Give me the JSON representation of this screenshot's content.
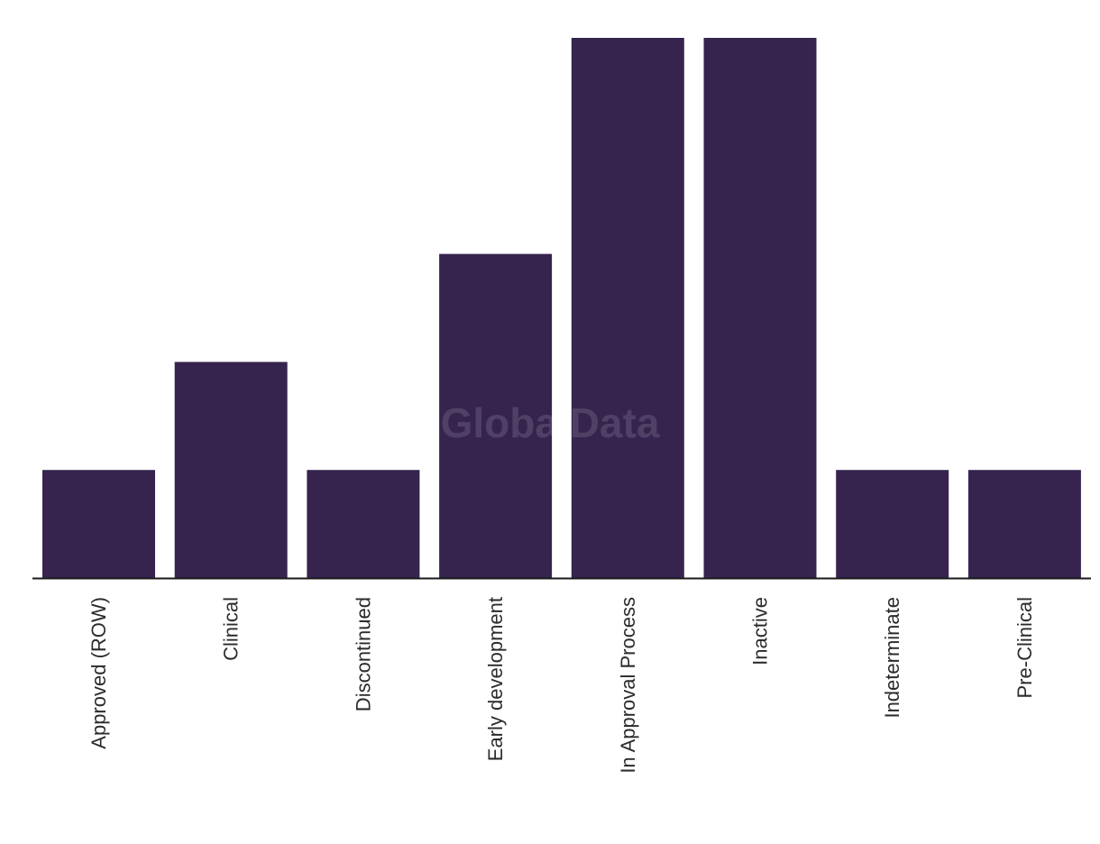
{
  "chart_data": {
    "type": "bar",
    "categories": [
      "Approved (ROW)",
      "Clinical",
      "Discontinued",
      "Early development",
      "In Approval Process",
      "Inactive",
      "Indeterminate",
      "Pre-Clinical"
    ],
    "values": [
      1,
      2,
      1,
      3,
      5,
      5,
      1,
      1
    ],
    "ylim": [
      0,
      5
    ],
    "grid": false,
    "legend": "none",
    "bar_color": "#36244f",
    "axis_color": "#1a1a1a"
  },
  "watermark": "GlobalData"
}
